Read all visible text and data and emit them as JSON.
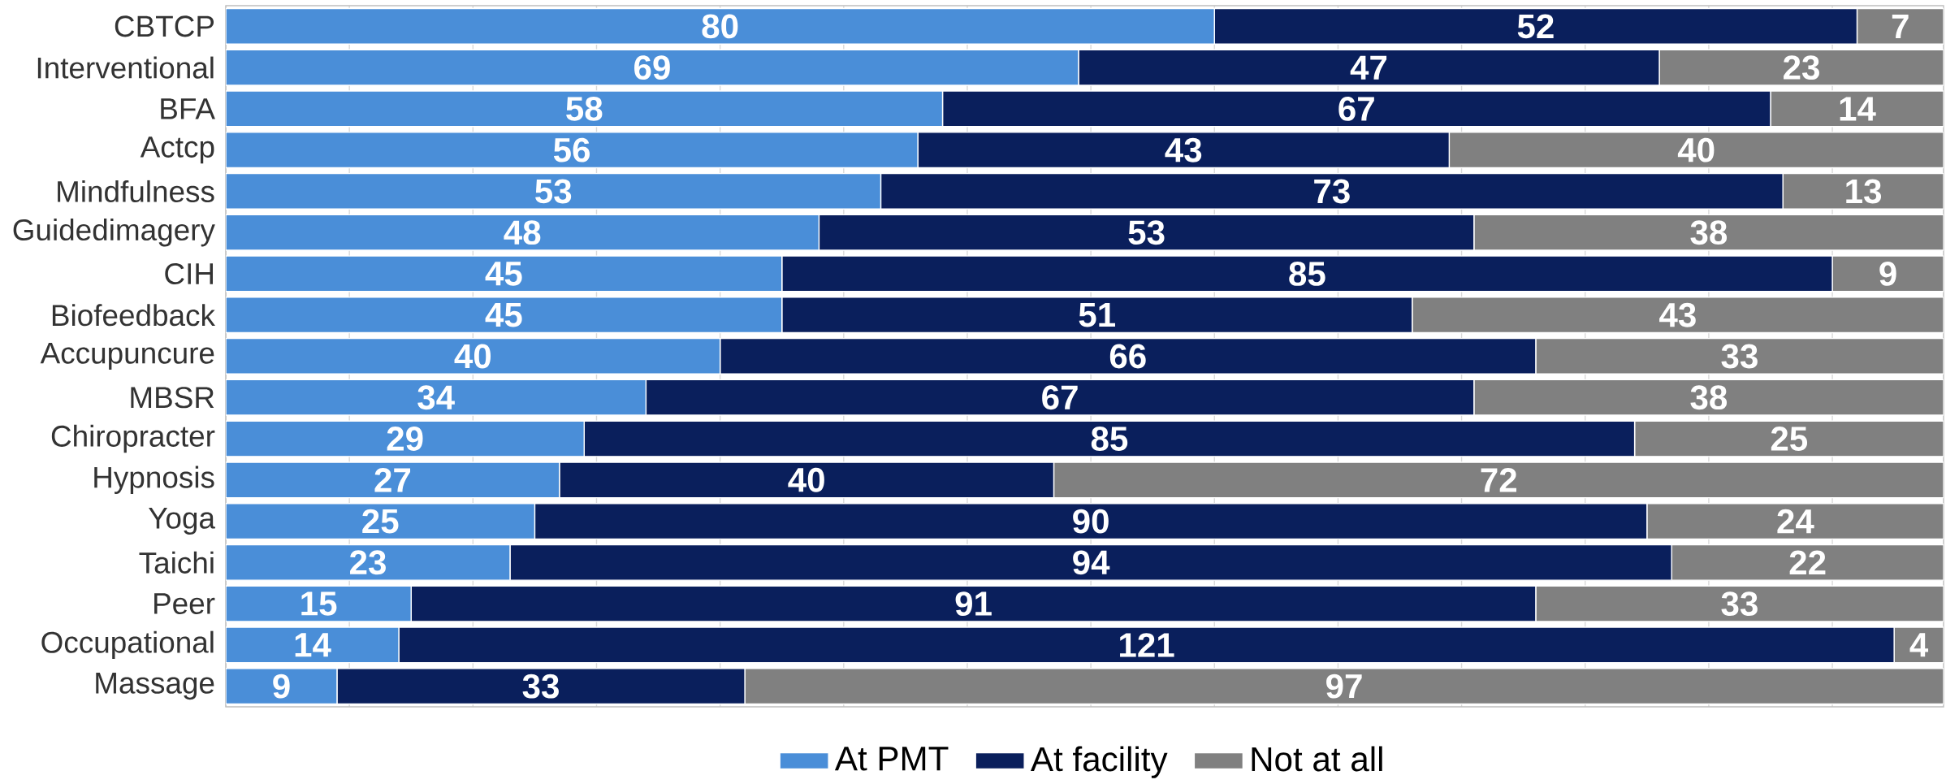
{
  "chart_data": {
    "type": "bar",
    "orientation": "horizontal",
    "stacked": true,
    "data_labels": true,
    "legend": "bottom",
    "grid": "x",
    "tick_labels": "y",
    "categories": [
      "CBTCP",
      "Interventional",
      "BFA",
      "Actcp",
      "Mindfulness",
      "Guidedimagery",
      "CIH",
      "Biofeedback",
      "Accupuncure",
      "MBSR",
      "Chiropracter",
      "Hypnosis",
      "Yoga",
      "Taichi",
      "Peer",
      "Occupational",
      "Massage"
    ],
    "series": [
      {
        "name": "At PMT",
        "color": "#4a8ed8",
        "values": [
          80,
          69,
          58,
          56,
          53,
          48,
          45,
          45,
          40,
          34,
          29,
          27,
          25,
          23,
          15,
          14,
          9
        ]
      },
      {
        "name": "At facility",
        "color": "#0a1f5c",
        "values": [
          52,
          47,
          67,
          43,
          73,
          53,
          85,
          51,
          66,
          67,
          85,
          40,
          90,
          94,
          91,
          121,
          33
        ]
      },
      {
        "name": "Not at all",
        "color": "#808080",
        "values": [
          7,
          23,
          14,
          40,
          13,
          38,
          9,
          43,
          33,
          38,
          25,
          72,
          24,
          22,
          33,
          4,
          97
        ]
      }
    ]
  }
}
